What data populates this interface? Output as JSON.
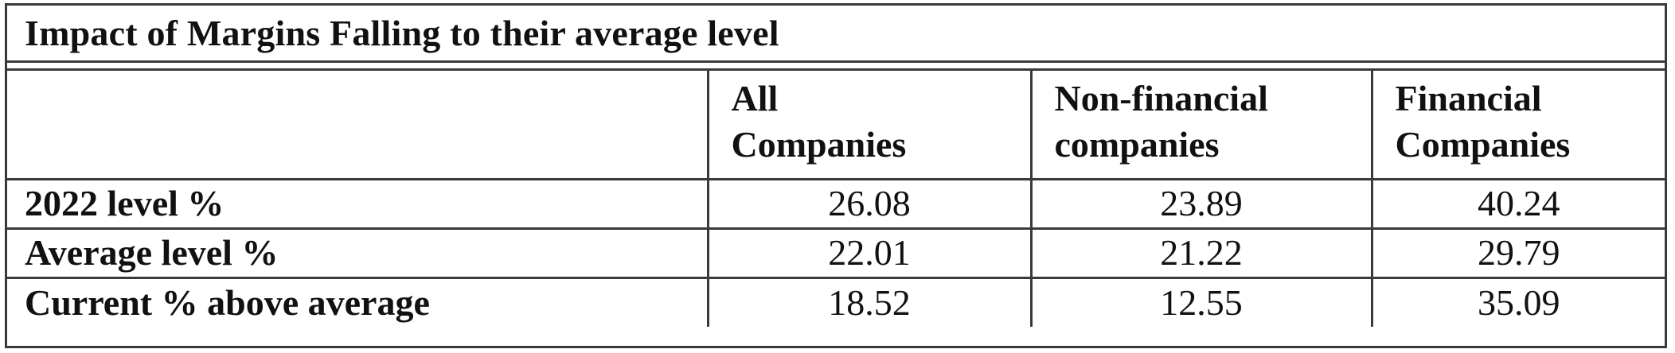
{
  "table": {
    "title": "Impact of Margins Falling to their average level",
    "columns": [
      {
        "line1": "All",
        "line2": "Companies"
      },
      {
        "line1": "Non-financial",
        "line2": "companies"
      },
      {
        "line1": "Financial",
        "line2": "Companies"
      }
    ],
    "rows": [
      {
        "label": "2022 level %",
        "values": [
          "26.08",
          "23.89",
          "40.24"
        ]
      },
      {
        "label": "Average level %",
        "values": [
          "22.01",
          "21.22",
          "29.79"
        ]
      },
      {
        "label": "Current % above average",
        "values": [
          "18.52",
          "12.55",
          "35.09"
        ]
      }
    ]
  }
}
